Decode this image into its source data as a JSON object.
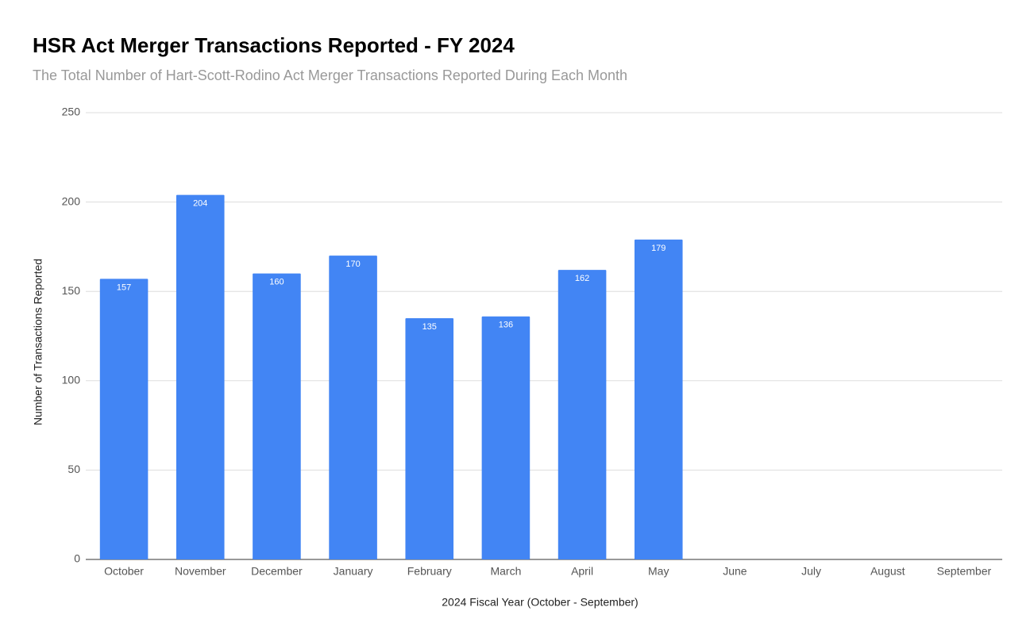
{
  "chart_data": {
    "type": "bar",
    "title": "HSR Act Merger Transactions Reported - FY 2024",
    "subtitle": "The Total Number of Hart-Scott-Rodino Act Merger Transactions Reported During Each Month",
    "x_label": "2024 Fiscal Year (October - September)",
    "y_label": "Number of Transactions Reported",
    "categories": [
      "October",
      "November",
      "December",
      "January",
      "February",
      "March",
      "April",
      "May",
      "June",
      "July",
      "August",
      "September"
    ],
    "values": [
      157,
      204,
      160,
      170,
      135,
      136,
      162,
      179,
      null,
      null,
      null,
      null
    ],
    "color": "#4285f4",
    "ylim": [
      0,
      250
    ],
    "yticks": [
      0,
      50,
      100,
      150,
      200,
      250
    ],
    "grid": true
  }
}
